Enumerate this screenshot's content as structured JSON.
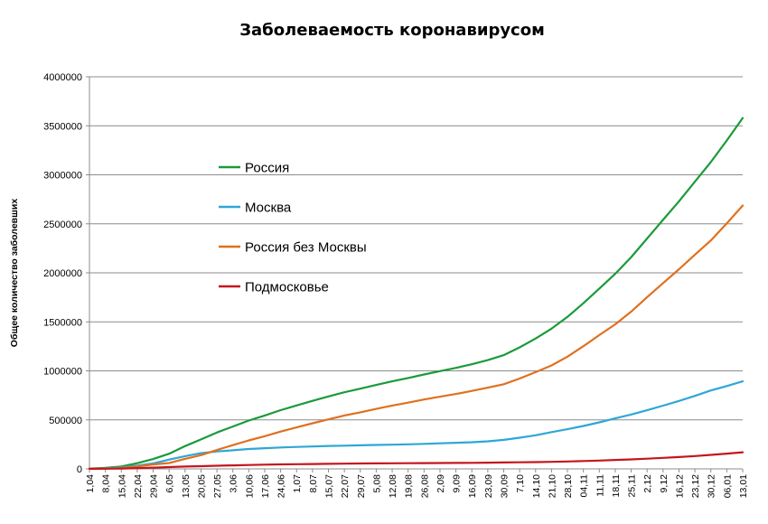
{
  "chart_data": {
    "type": "line",
    "title": "Заболеваемость коронавирусом",
    "xlabel": "",
    "ylabel": "Общее количество заболевших",
    "ylim": [
      0,
      4000000
    ],
    "yticks": [
      "0",
      "500000",
      "1000000",
      "1500000",
      "2000000",
      "2500000",
      "3000000",
      "3500000",
      "4000000"
    ],
    "categories": [
      "1,04",
      "8,04",
      "15,04",
      "22,04",
      "29,04",
      "6,05",
      "13,05",
      "20,05",
      "27,05",
      "3,06",
      "10,06",
      "17,06",
      "24,06",
      "1,07",
      "8,07",
      "15,07",
      "22,07",
      "29,07",
      "5,08",
      "12,08",
      "19,08",
      "26,08",
      "2,09",
      "9,09",
      "16,09",
      "23,09",
      "30,09",
      "7,10",
      "14,10",
      "21,10",
      "28,10",
      "04,11",
      "11,11",
      "18,11",
      "25,11",
      "2,12",
      "9,12",
      "16,12",
      "23,12",
      "30,12",
      "06,01",
      "13,01"
    ],
    "grid": true,
    "legend_position": "inside-upper-left",
    "series": [
      {
        "name": "Россия",
        "color": "#1a9a3a",
        "values": [
          2800,
          10100,
          24500,
          57900,
          100000,
          155000,
          232000,
          300000,
          371000,
          432000,
          493000,
          545000,
          599000,
          647000,
          694000,
          739000,
          782000,
          818000,
          856000,
          893000,
          927000,
          963000,
          997000,
          1030000,
          1067000,
          1110000,
          1160000,
          1240000,
          1330000,
          1430000,
          1550000,
          1690000,
          1840000,
          1990000,
          2160000,
          2350000,
          2540000,
          2730000,
          2930000,
          3130000,
          3350000,
          3580000
        ]
      },
      {
        "name": "Москва",
        "color": "#2ea7d6",
        "values": [
          1700,
          6400,
          15000,
          33000,
          55000,
          95000,
          130000,
          160000,
          178000,
          190000,
          203000,
          211000,
          218000,
          224000,
          229000,
          234000,
          237000,
          241000,
          244000,
          247000,
          251000,
          255000,
          261000,
          266000,
          272000,
          281000,
          296000,
          318000,
          343000,
          375000,
          405000,
          438000,
          475000,
          515000,
          555000,
          598000,
          645000,
          693000,
          745000,
          800000,
          845000,
          893000
        ]
      },
      {
        "name": "Россия без Москвы",
        "color": "#e07020",
        "values": [
          1100,
          3700,
          9500,
          24900,
          45000,
          60000,
          102000,
          140000,
          193000,
          242000,
          290000,
          334000,
          381000,
          423000,
          465000,
          505000,
          545000,
          577000,
          612000,
          646000,
          676000,
          708000,
          736000,
          764000,
          795000,
          829000,
          864000,
          922000,
          987000,
          1055000,
          1145000,
          1252000,
          1365000,
          1475000,
          1605000,
          1752000,
          1895000,
          2037000,
          2185000,
          2330000,
          2505000,
          2687000
        ]
      },
      {
        "name": "Подмосковье",
        "color": "#c4161c",
        "values": [
          500,
          1500,
          4000,
          8000,
          13000,
          18000,
          24000,
          28000,
          32000,
          36000,
          40000,
          43000,
          46000,
          48000,
          50000,
          52000,
          53500,
          55000,
          56000,
          57000,
          58000,
          59000,
          60000,
          61000,
          62000,
          63500,
          65000,
          67000,
          69000,
          72000,
          76000,
          80000,
          85000,
          91000,
          97000,
          104000,
          112000,
          121000,
          131000,
          143000,
          156000,
          170000
        ]
      }
    ]
  }
}
